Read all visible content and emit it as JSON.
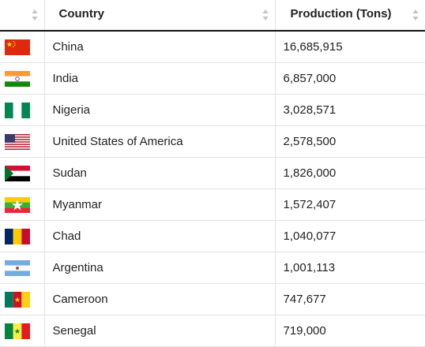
{
  "table": {
    "columns": [
      {
        "label": ""
      },
      {
        "label": "Country"
      },
      {
        "label": "Production (Tons)"
      }
    ],
    "rows": [
      {
        "flag": "china-flag-icon",
        "country": "China",
        "production": "16,685,915"
      },
      {
        "flag": "india-flag-icon",
        "country": "India",
        "production": "6,857,000"
      },
      {
        "flag": "nigeria-flag-icon",
        "country": "Nigeria",
        "production": "3,028,571"
      },
      {
        "flag": "usa-flag-icon",
        "country": "United States of America",
        "production": "2,578,500"
      },
      {
        "flag": "sudan-flag-icon",
        "country": "Sudan",
        "production": "1,826,000"
      },
      {
        "flag": "myanmar-flag-icon",
        "country": "Myanmar",
        "production": "1,572,407"
      },
      {
        "flag": "chad-flag-icon",
        "country": "Chad",
        "production": "1,040,077"
      },
      {
        "flag": "argentina-flag-icon",
        "country": "Argentina",
        "production": "1,001,113"
      },
      {
        "flag": "cameroon-flag-icon",
        "country": "Cameroon",
        "production": "747,677"
      },
      {
        "flag": "senegal-flag-icon",
        "country": "Senegal",
        "production": "719,000"
      }
    ]
  }
}
